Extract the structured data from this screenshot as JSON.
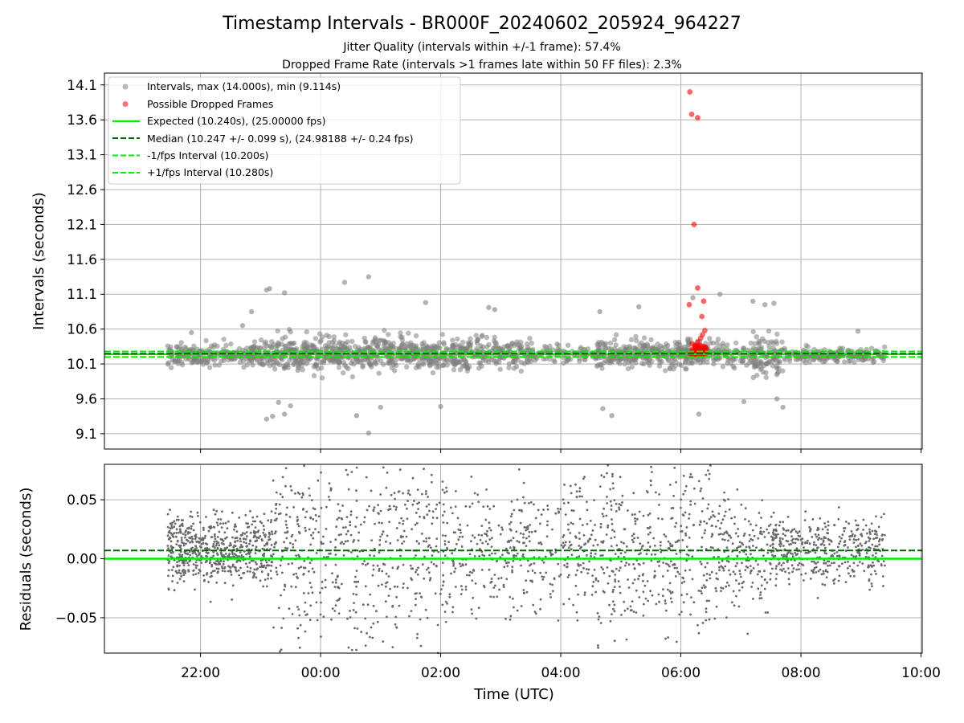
{
  "figure": {
    "title": "Timestamp Intervals - BR000F_20240602_205924_964227",
    "subtitle_1": "Jitter Quality (intervals within +/-1 frame): 57.4%",
    "subtitle_2": "Dropped Frame Rate (intervals >1 frames late within 50 FF files): 2.3%"
  },
  "chart_data": [
    {
      "type": "scatter",
      "panel": "top",
      "ylabel": "Intervals (seconds)",
      "ylim": [
        8.88,
        14.27
      ],
      "yticks": [
        9.1,
        9.6,
        10.1,
        10.6,
        11.1,
        11.6,
        12.1,
        12.6,
        13.1,
        13.6,
        14.1
      ],
      "ytick_labels": [
        "9.1",
        "9.6",
        "10.1",
        "10.6",
        "11.1",
        "11.6",
        "12.1",
        "12.6",
        "13.1",
        "13.6",
        "14.1"
      ],
      "xlim_hours": [
        -3.6,
        10.02
      ],
      "xticks_hours": [
        -2,
        0,
        2,
        4,
        6,
        8,
        10
      ],
      "grid": true,
      "legend_position": "top-left",
      "legend": [
        {
          "label": "Intervals, max (14.000s), min (9.114s)",
          "kind": "marker",
          "color": "#808080"
        },
        {
          "label": "Possible Dropped Frames",
          "kind": "marker",
          "color": "#ff0000"
        },
        {
          "label": "Expected (10.240s), (25.00000 fps)",
          "kind": "solid",
          "color": "#00ee00"
        },
        {
          "label": "Median (10.247 +/- 0.099 s), (24.98188 +/- 0.24 fps)",
          "kind": "dashed",
          "color": "#006400"
        },
        {
          "label": "-1/fps Interval (10.200s)",
          "kind": "dashed",
          "color": "#00ee00"
        },
        {
          "label": "+1/fps Interval (10.280s)",
          "kind": "dashed",
          "color": "#00ee00"
        }
      ],
      "hlines": [
        {
          "y": 10.24,
          "style": "solid",
          "color": "#00ee00"
        },
        {
          "y": 10.247,
          "style": "dashed",
          "color": "#006400"
        },
        {
          "y": 10.2,
          "style": "dashed",
          "color": "#00ee00"
        },
        {
          "y": 10.28,
          "style": "dashed",
          "color": "#00ee00"
        }
      ],
      "series": [
        {
          "name": "Intervals, max (14.000s), min (9.114s)",
          "color": "#808080",
          "outliers": [
            [
              -0.9,
              11.16
            ],
            [
              -0.85,
              11.18
            ],
            [
              -0.6,
              11.12
            ],
            [
              0.4,
              11.27
            ],
            [
              0.8,
              11.35
            ],
            [
              0.8,
              9.11
            ],
            [
              0.6,
              9.36
            ],
            [
              1.0,
              9.48
            ],
            [
              -0.9,
              9.31
            ],
            [
              -0.8,
              9.35
            ],
            [
              -0.6,
              9.38
            ],
            [
              -0.7,
              9.55
            ],
            [
              -0.5,
              9.5
            ],
            [
              2.0,
              9.49
            ],
            [
              4.7,
              9.46
            ],
            [
              4.85,
              9.36
            ],
            [
              6.3,
              9.38
            ],
            [
              1.75,
              10.98
            ],
            [
              2.8,
              10.91
            ],
            [
              2.9,
              10.88
            ],
            [
              4.65,
              10.85
            ],
            [
              5.3,
              10.92
            ],
            [
              6.2,
              11.05
            ],
            [
              6.65,
              11.1
            ],
            [
              7.2,
              11.0
            ],
            [
              7.4,
              10.95
            ],
            [
              7.55,
              10.97
            ],
            [
              7.05,
              9.56
            ],
            [
              7.6,
              9.6
            ],
            [
              7.7,
              9.48
            ],
            [
              -1.15,
              10.85
            ],
            [
              -1.3,
              10.65
            ],
            [
              -2.15,
              10.55
            ],
            [
              8.95,
              10.57
            ]
          ],
          "bands": [
            {
              "x": [
                -2.55,
                -1.0
              ],
              "center": 10.23,
              "spread": 0.13,
              "count": 230
            },
            {
              "x": [
                -1.0,
                1.5
              ],
              "center": 10.25,
              "spread": 0.2,
              "count": 480
            },
            {
              "x": [
                1.5,
                3.5
              ],
              "center": 10.24,
              "spread": 0.18,
              "count": 340
            },
            {
              "x": [
                3.5,
                4.6
              ],
              "center": 10.24,
              "spread": 0.1,
              "count": 90
            },
            {
              "x": [
                4.6,
                6.3
              ],
              "center": 10.25,
              "spread": 0.16,
              "count": 330
            },
            {
              "x": [
                6.3,
                7.2
              ],
              "center": 10.24,
              "spread": 0.13,
              "count": 110
            },
            {
              "x": [
                7.2,
                7.7
              ],
              "center": 10.2,
              "spread": 0.25,
              "count": 100
            },
            {
              "x": [
                7.7,
                9.4
              ],
              "center": 10.23,
              "spread": 0.08,
              "count": 200
            }
          ]
        },
        {
          "name": "Possible Dropped Frames",
          "color": "#ff0000",
          "points": [
            [
              6.15,
              14.0
            ],
            [
              6.18,
              13.68
            ],
            [
              6.28,
              13.63
            ],
            [
              6.22,
              12.1
            ],
            [
              6.28,
              11.19
            ],
            [
              6.38,
              11.0
            ],
            [
              6.14,
              10.95
            ],
            [
              6.35,
              10.78
            ],
            [
              6.4,
              10.58
            ],
            [
              6.36,
              10.52
            ],
            [
              6.33,
              10.47
            ]
          ],
          "cluster": {
            "x": [
              6.15,
              6.42
            ],
            "y": [
              10.24,
              10.42
            ],
            "count": 70
          }
        }
      ]
    },
    {
      "type": "scatter",
      "panel": "bottom",
      "xlabel": "Time (UTC)",
      "ylabel": "Residuals (seconds)",
      "ylim": [
        -0.08,
        0.08
      ],
      "yticks": [
        -0.05,
        0.0,
        0.05
      ],
      "ytick_labels": [
        "−0.05",
        "0.00",
        "0.05"
      ],
      "xlim_hours": [
        -3.6,
        10.02
      ],
      "xticks_hours": [
        -2,
        0,
        2,
        4,
        6,
        8,
        10
      ],
      "xtick_labels": [
        "22:00",
        "00:00",
        "02:00",
        "04:00",
        "06:00",
        "08:00",
        "10:00"
      ],
      "grid": true,
      "hlines": [
        {
          "y": 0.0,
          "style": "solid",
          "color": "#00ee00"
        },
        {
          "y": 0.007,
          "style": "dashed",
          "color": "#006400"
        }
      ],
      "series": [
        {
          "name": "Residuals",
          "color": "#696969",
          "bands": [
            {
              "x": [
                -2.55,
                -0.8
              ],
              "center": 0.008,
              "spread": 0.028,
              "count": 600
            },
            {
              "x": [
                -0.8,
                2.0
              ],
              "center": 0.01,
              "spread": 0.075,
              "count": 520
            },
            {
              "x": [
                2.0,
                4.6
              ],
              "center": 0.008,
              "spread": 0.05,
              "count": 430
            },
            {
              "x": [
                4.6,
                6.5
              ],
              "center": 0.01,
              "spread": 0.07,
              "count": 380
            },
            {
              "x": [
                6.5,
                7.5
              ],
              "center": 0.005,
              "spread": 0.045,
              "count": 200
            },
            {
              "x": [
                7.5,
                9.4
              ],
              "center": 0.008,
              "spread": 0.026,
              "count": 430
            }
          ]
        }
      ]
    }
  ]
}
